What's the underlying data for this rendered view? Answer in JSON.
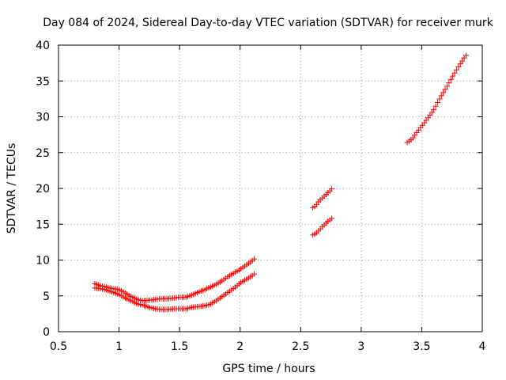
{
  "chart_data": {
    "type": "scatter",
    "title": "Day 084 of 2024, Sidereal Day-to-day VTEC variation (SDTVAR) for receiver murk",
    "xlabel": "GPS time / hours",
    "ylabel": "SDTVAR / TECUs",
    "xlim": [
      0.5,
      4
    ],
    "ylim": [
      0,
      40
    ],
    "xticks": [
      0.5,
      1,
      1.5,
      2,
      2.5,
      3,
      3.5,
      4
    ],
    "yticks": [
      0,
      5,
      10,
      15,
      20,
      25,
      30,
      35,
      40
    ],
    "xtick_labels": [
      "0.5",
      "1",
      "1.5",
      "2",
      "2.5",
      "3",
      "3.5",
      "4"
    ],
    "ytick_labels": [
      "0",
      "5",
      "10",
      "15",
      "20",
      "25",
      "30",
      "35",
      "40"
    ],
    "grid": true,
    "marker": "+",
    "series": [
      {
        "name": "series-upper-segment-1",
        "color": "#ff0000",
        "x": [
          0.8,
          0.85,
          0.9,
          0.95,
          1.0,
          1.05,
          1.1,
          1.15,
          1.2,
          1.25,
          1.3,
          1.35,
          1.4,
          1.45,
          1.5,
          1.55,
          1.6,
          1.65,
          1.7,
          1.75,
          1.8,
          1.85,
          1.9,
          1.95,
          2.0,
          2.05,
          2.1,
          2.12
        ],
        "y": [
          6.7,
          6.4,
          6.2,
          6.0,
          5.9,
          5.4,
          4.9,
          4.5,
          4.3,
          4.4,
          4.5,
          4.6,
          4.6,
          4.7,
          4.8,
          4.8,
          5.1,
          5.5,
          5.8,
          6.2,
          6.6,
          7.1,
          7.7,
          8.2,
          8.7,
          9.3,
          9.9,
          10.2
        ]
      },
      {
        "name": "series-lower-segment-1",
        "color": "#ff0000",
        "x": [
          0.8,
          0.85,
          0.9,
          0.95,
          1.0,
          1.05,
          1.1,
          1.15,
          1.2,
          1.25,
          1.3,
          1.35,
          1.4,
          1.45,
          1.5,
          1.55,
          1.6,
          1.65,
          1.7,
          1.75,
          1.8,
          1.85,
          1.9,
          1.95,
          2.0,
          2.05,
          2.1,
          2.12
        ],
        "y": [
          6.1,
          6.0,
          5.8,
          5.5,
          5.2,
          4.7,
          4.3,
          3.9,
          3.7,
          3.4,
          3.2,
          3.1,
          3.1,
          3.2,
          3.2,
          3.2,
          3.4,
          3.5,
          3.6,
          3.8,
          4.3,
          4.9,
          5.5,
          6.1,
          6.8,
          7.3,
          7.8,
          8.1
        ]
      },
      {
        "name": "series-upper-segment-2",
        "color": "#ff0000",
        "x": [
          2.6,
          2.625,
          2.65,
          2.675,
          2.7,
          2.725,
          2.75,
          2.76
        ],
        "y": [
          17.3,
          17.6,
          18.2,
          18.6,
          19.0,
          19.4,
          19.8,
          20.0
        ]
      },
      {
        "name": "series-lower-segment-2",
        "color": "#ff0000",
        "x": [
          2.6,
          2.625,
          2.65,
          2.675,
          2.7,
          2.725,
          2.75,
          2.76
        ],
        "y": [
          13.5,
          13.7,
          14.1,
          14.6,
          15.0,
          15.4,
          15.7,
          15.9
        ]
      },
      {
        "name": "series-segment-3",
        "color": "#ff0000",
        "x": [
          3.38,
          3.42,
          3.45,
          3.5,
          3.55,
          3.6,
          3.65,
          3.7,
          3.75,
          3.8,
          3.85,
          3.88
        ],
        "y": [
          26.4,
          26.9,
          27.6,
          28.7,
          29.8,
          31.0,
          32.6,
          34.0,
          35.5,
          36.9,
          38.2,
          38.9
        ]
      }
    ]
  }
}
